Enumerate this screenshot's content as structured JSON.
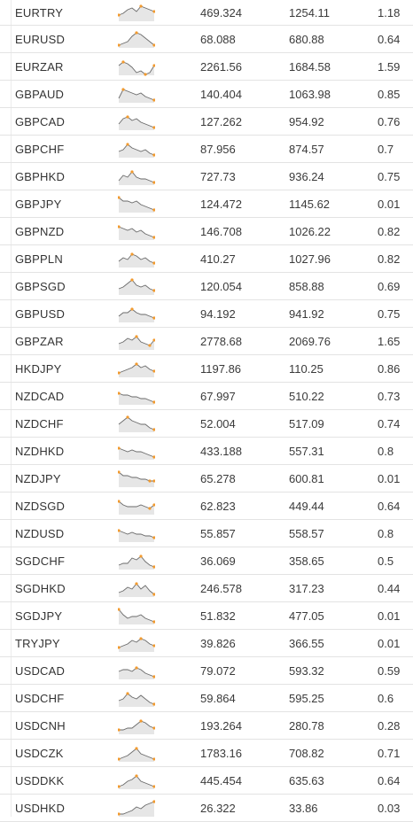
{
  "rows": [
    {
      "pair": "EURTRY",
      "v1": "469.324",
      "v2": "1254.11",
      "v3": "1.18",
      "spark": [
        6,
        5,
        3,
        2,
        4,
        1,
        2,
        3,
        4
      ]
    },
    {
      "pair": "EURUSD",
      "v1": "68.088",
      "v2": "680.88",
      "v3": "0.64",
      "spark": [
        8,
        7,
        6,
        3,
        1,
        2,
        4,
        6,
        8
      ]
    },
    {
      "pair": "EURZAR",
      "v1": "2261.56",
      "v2": "1684.58",
      "v3": "1.59",
      "spark": [
        4,
        2,
        3,
        5,
        8,
        7,
        9,
        8,
        4
      ]
    },
    {
      "pair": "GBPAUD",
      "v1": "140.404",
      "v2": "1063.98",
      "v3": "0.85",
      "spark": [
        7,
        2,
        3,
        4,
        5,
        4,
        6,
        7,
        8
      ]
    },
    {
      "pair": "GBPCAD",
      "v1": "127.262",
      "v2": "954.92",
      "v3": "0.76",
      "spark": [
        6,
        3,
        2,
        4,
        3,
        5,
        6,
        7,
        8
      ]
    },
    {
      "pair": "GBPCHF",
      "v1": "87.956",
      "v2": "874.57",
      "v3": "0.7",
      "spark": [
        6,
        5,
        2,
        4,
        5,
        6,
        5,
        7,
        8
      ]
    },
    {
      "pair": "GBPHKD",
      "v1": "727.73",
      "v2": "936.24",
      "v3": "0.75",
      "spark": [
        7,
        4,
        5,
        2,
        5,
        6,
        6,
        7,
        8
      ]
    },
    {
      "pair": "GBPJPY",
      "v1": "124.472",
      "v2": "1145.62",
      "v3": "0.01",
      "spark": [
        1,
        3,
        3,
        4,
        3,
        5,
        6,
        7,
        8
      ]
    },
    {
      "pair": "GBPNZD",
      "v1": "146.708",
      "v2": "1026.22",
      "v3": "0.82",
      "spark": [
        2,
        3,
        4,
        3,
        5,
        4,
        6,
        7,
        8
      ]
    },
    {
      "pair": "GBPPLN",
      "v1": "410.27",
      "v2": "1027.96",
      "v3": "0.82",
      "spark": [
        6,
        4,
        5,
        2,
        3,
        5,
        4,
        6,
        7
      ]
    },
    {
      "pair": "GBPSGD",
      "v1": "120.054",
      "v2": "858.88",
      "v3": "0.69",
      "spark": [
        6,
        5,
        3,
        1,
        4,
        5,
        4,
        6,
        7
      ]
    },
    {
      "pair": "GBPUSD",
      "v1": "94.192",
      "v2": "941.92",
      "v3": "0.75",
      "spark": [
        6,
        4,
        4,
        2,
        4,
        5,
        5,
        6,
        7
      ]
    },
    {
      "pair": "GBPZAR",
      "v1": "2778.68",
      "v2": "2069.76",
      "v3": "1.65",
      "spark": [
        6,
        5,
        3,
        4,
        2,
        5,
        6,
        7,
        4
      ]
    },
    {
      "pair": "HKDJPY",
      "v1": "1197.86",
      "v2": "110.25",
      "v3": "0.86",
      "spark": [
        7,
        6,
        5,
        4,
        2,
        4,
        3,
        5,
        6
      ]
    },
    {
      "pair": "NZDCAD",
      "v1": "67.997",
      "v2": "510.22",
      "v3": "0.73",
      "spark": [
        3,
        4,
        4,
        5,
        5,
        6,
        6,
        7,
        8
      ]
    },
    {
      "pair": "NZDCHF",
      "v1": "52.004",
      "v2": "517.09",
      "v3": "0.74",
      "spark": [
        5,
        3,
        1,
        3,
        4,
        5,
        5,
        7,
        8
      ]
    },
    {
      "pair": "NZDHKD",
      "v1": "433.188",
      "v2": "557.31",
      "v3": "0.8",
      "spark": [
        3,
        4,
        5,
        4,
        5,
        5,
        6,
        7,
        8
      ]
    },
    {
      "pair": "NZDJPY",
      "v1": "65.278",
      "v2": "600.81",
      "v3": "0.01",
      "spark": [
        1,
        3,
        3,
        4,
        4,
        5,
        5,
        6,
        6
      ]
    },
    {
      "pair": "NZDSGD",
      "v1": "62.823",
      "v2": "449.44",
      "v3": "0.64",
      "spark": [
        2,
        4,
        5,
        5,
        5,
        4,
        5,
        6,
        4
      ]
    },
    {
      "pair": "NZDUSD",
      "v1": "55.857",
      "v2": "558.57",
      "v3": "0.8",
      "spark": [
        3,
        4,
        5,
        4,
        5,
        5,
        6,
        6,
        7
      ]
    },
    {
      "pair": "SGDCHF",
      "v1": "36.069",
      "v2": "358.65",
      "v3": "0.5",
      "spark": [
        7,
        6,
        6,
        3,
        4,
        2,
        5,
        7,
        8
      ]
    },
    {
      "pair": "SGDHKD",
      "v1": "246.578",
      "v2": "317.23",
      "v3": "0.44",
      "spark": [
        7,
        6,
        4,
        5,
        2,
        5,
        3,
        6,
        8
      ]
    },
    {
      "pair": "SGDJPY",
      "v1": "51.832",
      "v2": "477.05",
      "v3": "0.01",
      "spark": [
        1,
        4,
        6,
        5,
        5,
        4,
        6,
        7,
        8
      ]
    },
    {
      "pair": "TRYJPY",
      "v1": "39.826",
      "v2": "366.55",
      "v3": "0.01",
      "spark": [
        7,
        6,
        5,
        3,
        4,
        2,
        3,
        5,
        6
      ]
    },
    {
      "pair": "USDCAD",
      "v1": "79.072",
      "v2": "593.32",
      "v3": "0.59",
      "spark": [
        5,
        4,
        4,
        5,
        3,
        4,
        6,
        7,
        8
      ]
    },
    {
      "pair": "USDCHF",
      "v1": "59.864",
      "v2": "595.25",
      "v3": "0.6",
      "spark": [
        6,
        5,
        2,
        4,
        5,
        3,
        5,
        7,
        8
      ]
    },
    {
      "pair": "USDCNH",
      "v1": "193.264",
      "v2": "280.78",
      "v3": "0.28",
      "spark": [
        7,
        7,
        6,
        6,
        4,
        2,
        3,
        5,
        6
      ]
    },
    {
      "pair": "USDCZK",
      "v1": "1783.16",
      "v2": "708.82",
      "v3": "0.71",
      "spark": [
        8,
        7,
        6,
        4,
        2,
        5,
        6,
        7,
        8
      ]
    },
    {
      "pair": "USDDKK",
      "v1": "445.454",
      "v2": "635.63",
      "v3": "0.64",
      "spark": [
        8,
        7,
        5,
        4,
        2,
        5,
        6,
        7,
        8
      ]
    },
    {
      "pair": "USDHKD",
      "v1": "26.322",
      "v2": "33.86",
      "v3": "0.03",
      "spark": [
        8,
        8,
        7,
        6,
        4,
        5,
        3,
        2,
        1
      ]
    }
  ]
}
